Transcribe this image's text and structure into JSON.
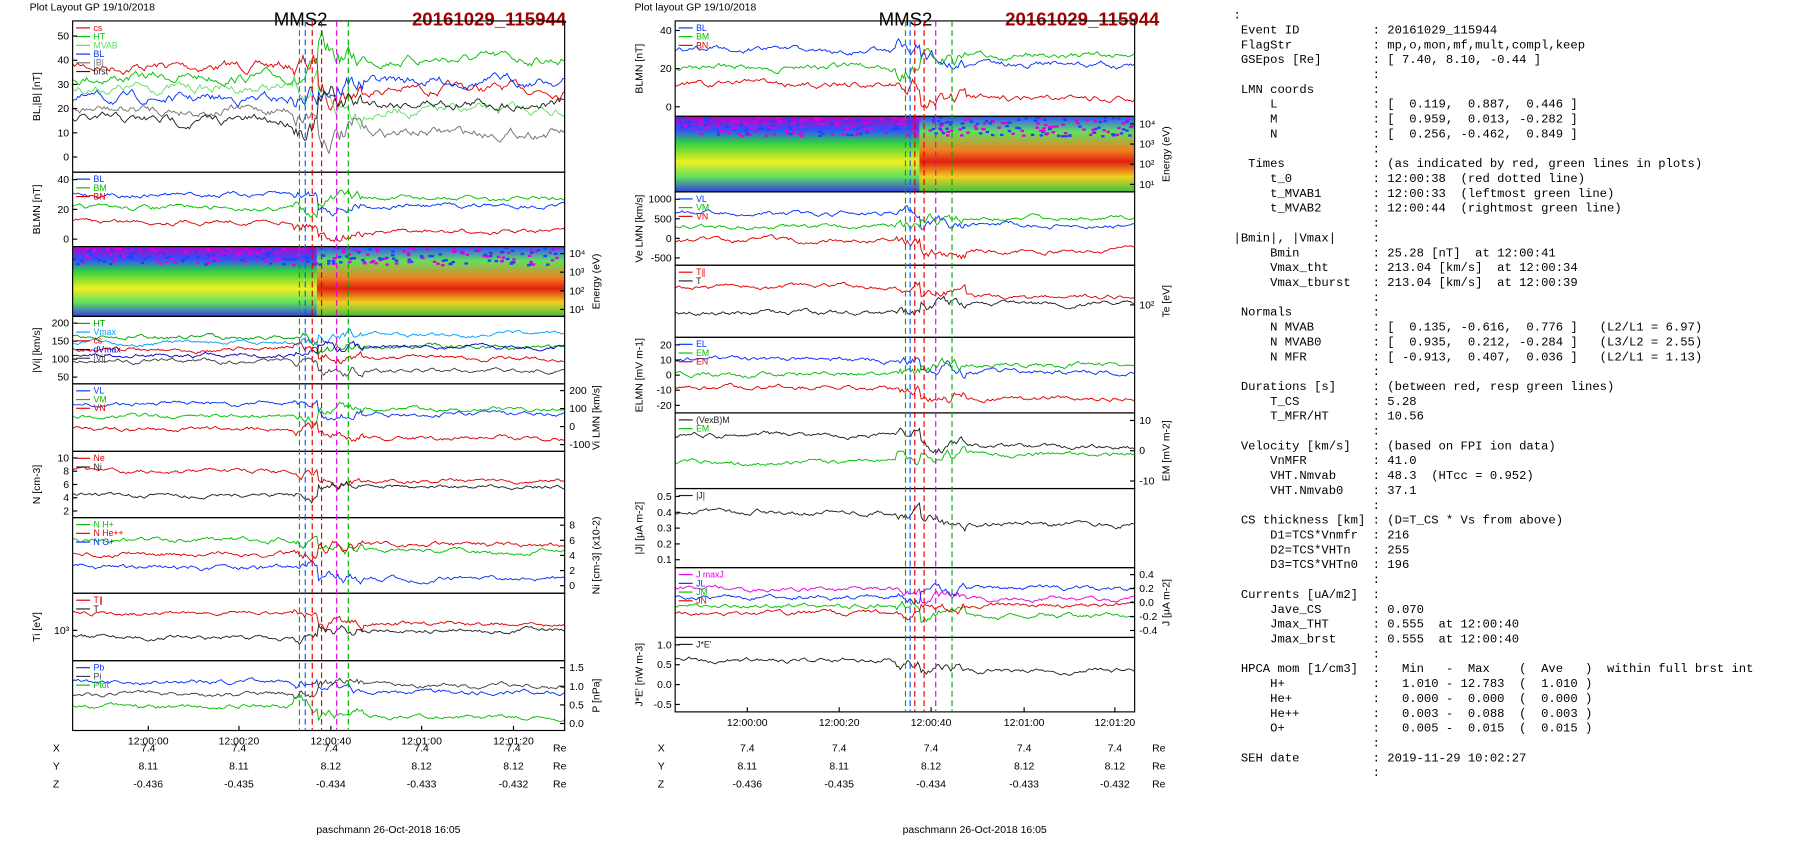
{
  "plots": [
    {
      "header": "Plot Layout GP 19/10/2018",
      "title": "MMS2",
      "event": "20161029_115944",
      "footer": "paschmann 26-Oct-2018 16:05",
      "xticks": [
        "12:00:00",
        "12:00:20",
        "12:00:40",
        "12:01:00",
        "12:01:20"
      ],
      "panels": [
        {
          "ylabel": "BL,|B| [nT]",
          "side": "left",
          "yticks": [
            "50",
            "40",
            "30",
            "20",
            "10",
            "0"
          ],
          "legend": [
            {
              "label": "cs",
              "color": "#e00000"
            },
            {
              "label": "HT",
              "color": "#00c000"
            },
            {
              "label": "MVAB",
              "color": "#60e060"
            },
            {
              "label": "BL",
              "color": "#0030ff"
            },
            {
              "label": "|B|",
              "color": "#707070"
            },
            {
              "label": "brst",
              "color": "#202020"
            }
          ]
        },
        {
          "ylabel": "BLMN [nT]",
          "side": "left",
          "yticks": [
            "40",
            "20",
            "0"
          ],
          "legend": [
            {
              "label": "BL",
              "color": "#0030ff"
            },
            {
              "label": "BM",
              "color": "#00c000"
            },
            {
              "label": "BN",
              "color": "#e00000"
            }
          ]
        },
        {
          "ylabel": "Energy (eV)",
          "side": "right",
          "kind": "spectrogram",
          "yticks": [
            "10⁴",
            "10³",
            "10²",
            "10¹"
          ],
          "legend": []
        },
        {
          "ylabel": "|Vi| [km/s]",
          "side": "left",
          "yticks": [
            "200",
            "150",
            "100",
            "50"
          ],
          "legend": [
            {
              "label": "HT",
              "color": "#00a000"
            },
            {
              "label": "Vmax",
              "color": "#00a0ff"
            },
            {
              "label": "cs",
              "color": "#e00000"
            },
            {
              "label": "dVmax",
              "color": "#0000c0"
            },
            {
              "label": "|Vi|",
              "color": "#404040"
            }
          ]
        },
        {
          "ylabel": "Vi LMN [km/s]",
          "side": "right",
          "yticks": [
            "200",
            "100",
            "0",
            "-100"
          ],
          "legend": [
            {
              "label": "VL",
              "color": "#0030ff"
            },
            {
              "label": "VM",
              "color": "#00c000"
            },
            {
              "label": "VN",
              "color": "#e00000"
            }
          ]
        },
        {
          "ylabel": "N [cm-3]",
          "side": "left",
          "yticks": [
            "10",
            "8",
            "6",
            "4",
            "2"
          ],
          "legend": [
            {
              "label": "Ne",
              "color": "#e00000"
            },
            {
              "label": "Ni",
              "color": "#202020"
            }
          ]
        },
        {
          "ylabel": "Ni [cm-3] (x10-2)",
          "side": "right",
          "yticks": [
            "8",
            "6",
            "4",
            "2",
            "0"
          ],
          "legend": [
            {
              "label": "N H+",
              "color": "#00c000"
            },
            {
              "label": "N He++",
              "color": "#e00000"
            },
            {
              "label": "N O+",
              "color": "#0030ff"
            }
          ]
        },
        {
          "ylabel": "Ti [eV]",
          "side": "left",
          "yticks": [
            "10³"
          ],
          "legend": [
            {
              "label": "T∥",
              "color": "#e00000"
            },
            {
              "label": "T",
              "color": "#202020"
            }
          ]
        },
        {
          "ylabel": "P [nPa]",
          "side": "right",
          "yticks": [
            "1.5",
            "1.0",
            "0.5",
            "0.0"
          ],
          "legend": [
            {
              "label": "Pb",
              "color": "#0030ff"
            },
            {
              "label": "Pi",
              "color": "#404040"
            },
            {
              "label": "Ptot",
              "color": "#00c000"
            }
          ]
        }
      ],
      "positions": [
        {
          "label": "X",
          "values": [
            "7.4",
            "7.4",
            "7.4",
            "7.4",
            "7.4"
          ],
          "unit": "Re"
        },
        {
          "label": "Y",
          "values": [
            "8.11",
            "8.11",
            "8.12",
            "8.12",
            "8.12"
          ],
          "unit": "Re"
        },
        {
          "label": "Z",
          "values": [
            "-0.436",
            "-0.435",
            "-0.434",
            "-0.433",
            "-0.432"
          ],
          "unit": "Re"
        }
      ]
    },
    {
      "header": "Plot layout GP 19/10/2018",
      "title": "MMS2",
      "event": "20161029_115944",
      "footer": "paschmann 26-Oct-2018 16:05",
      "xticks": [
        "12:00:00",
        "12:00:20",
        "12:00:40",
        "12:01:00",
        "12:01:20"
      ],
      "panels": [
        {
          "ylabel": "BLMN [nT]",
          "side": "left",
          "yticks": [
            "40",
            "20",
            "0"
          ],
          "legend": [
            {
              "label": "BL",
              "color": "#0030ff"
            },
            {
              "label": "BM",
              "color": "#00c000"
            },
            {
              "label": "BN",
              "color": "#e00000"
            }
          ]
        },
        {
          "ylabel": "Energy (eV)",
          "side": "right",
          "kind": "spectrogram",
          "yticks": [
            "10⁴",
            "10³",
            "10²",
            "10¹"
          ],
          "legend": []
        },
        {
          "ylabel": "Ve LMN [km/s]",
          "side": "left",
          "yticks": [
            "1000",
            "500",
            "0",
            "-500"
          ],
          "legend": [
            {
              "label": "VL",
              "color": "#0030ff"
            },
            {
              "label": "VM",
              "color": "#00c000"
            },
            {
              "label": "VN",
              "color": "#e00000"
            }
          ]
        },
        {
          "ylabel": "Te [eV]",
          "side": "right",
          "yticks": [
            "10²"
          ],
          "legend": [
            {
              "label": "T∥",
              "color": "#e00000"
            },
            {
              "label": "T",
              "color": "#202020"
            }
          ]
        },
        {
          "ylabel": "ELMN [mV m-1]",
          "side": "left",
          "yticks": [
            "20",
            "10",
            "0",
            "-10",
            "-20"
          ],
          "legend": [
            {
              "label": "EL",
              "color": "#0030ff"
            },
            {
              "label": "EM",
              "color": "#00c000"
            },
            {
              "label": "EN",
              "color": "#e00000"
            }
          ]
        },
        {
          "ylabel": "EM [mV m-2]",
          "side": "right",
          "yticks": [
            "10",
            "0",
            "-10"
          ],
          "legend": [
            {
              "label": "(VexB)M",
              "color": "#202020"
            },
            {
              "label": "EM",
              "color": "#00c000"
            }
          ]
        },
        {
          "ylabel": "|J| [μA m-2]",
          "side": "left",
          "yticks": [
            "0.5",
            "0.4",
            "0.3",
            "0.2",
            "0.1"
          ],
          "legend": [
            {
              "label": "|J|",
              "color": "#202020"
            }
          ]
        },
        {
          "ylabel": "J [μA m-2]",
          "side": "right",
          "yticks": [
            "0.4",
            "0.2",
            "0.0",
            "-0.2",
            "-0.4"
          ],
          "legend": [
            {
              "label": "J maxJ",
              "color": "#e000e0"
            },
            {
              "label": "JL",
              "color": "#0030ff"
            },
            {
              "label": "JM",
              "color": "#00c000"
            },
            {
              "label": "JN",
              "color": "#e00000"
            }
          ]
        },
        {
          "ylabel": "J*E' [nW m-3]",
          "side": "left",
          "yticks": [
            "1.0",
            "0.5",
            "0.0",
            "-0.5"
          ],
          "legend": [
            {
              "label": "J*E'",
              "color": "#202020"
            }
          ]
        }
      ],
      "positions": [
        {
          "label": "X",
          "values": [
            "7.4",
            "7.4",
            "7.4",
            "7.4",
            "7.4"
          ],
          "unit": "Re"
        },
        {
          "label": "Y",
          "values": [
            "8.11",
            "8.11",
            "8.12",
            "8.12",
            "8.12"
          ],
          "unit": "Re"
        },
        {
          "label": "Z",
          "values": [
            "-0.436",
            "-0.435",
            "-0.434",
            "-0.433",
            "-0.432"
          ],
          "unit": "Re"
        }
      ]
    }
  ],
  "info": {
    "lines": [
      ":",
      " Event ID          : 20161029_115944",
      " FlagStr           : mp,o,mon,mf,mult,compl,keep",
      " GSEpos [Re]       : [ 7.40, 8.10, -0.44 ]",
      "                   :",
      " LMN coords        :",
      "     L             : [  0.119,  0.887,  0.446 ]",
      "     M             : [  0.959,  0.013, -0.282 ]",
      "     N             : [  0.256, -0.462,  0.849 ]",
      "                   :",
      "  Times            : (as indicated by red, green lines in plots)",
      "     t_0           : 12:00:38  (red dotted line)",
      "     t_MVAB1       : 12:00:33  (leftmost green line)",
      "     t_MVAB2       : 12:00:44  (rightmost green line)",
      "                   :",
      "|Bmin|, |Vmax|     :",
      "     Bmin          : 25.28 [nT]  at 12:00:41",
      "     Vmax_tht      : 213.04 [km/s]  at 12:00:34",
      "     Vmax_tburst   : 213.04 [km/s]  at 12:00:39",
      "                   :",
      " Normals           :",
      "     N MVAB        : [  0.135, -0.616,  0.776 ]   (L2/L1 = 6.97)",
      "     N MVAB0       : [  0.935,  0.212, -0.284 ]   (L3/L2 = 2.55)",
      "     N MFR         : [ -0.913,  0.407,  0.036 ]   (L2/L1 = 1.13)",
      "                   :",
      " Durations [s]     : (between red, resp green lines)",
      "     T_CS          : 5.28",
      "     T_MFR/HT      : 10.56",
      "                   :",
      " Velocity [km/s]   : (based on FPI ion data)",
      "     VnMFR         : 41.0",
      "     VHT.Nmvab     : 48.3  (HTcc = 0.952)",
      "     VHT.Nmvab0    : 37.1",
      "                   :",
      " CS thickness [km] : (D=T_CS * Vs from above)",
      "     D1=TCS*Vnmfr  : 216",
      "     D2=TCS*VHTn   : 255",
      "     D3=TCS*VHTn0  : 196",
      "                   :",
      " Currents [uA/m2]  :",
      "     Jave_CS       : 0.070",
      "     Jmax_THT      : 0.555  at 12:00:40",
      "     Jmax_brst     : 0.555  at 12:00:40",
      "                   :",
      " HPCA mom [1/cm3]  :   Min   -  Max    (  Ave   )  within full brst int",
      "     H+            :   1.010 - 12.783  (  1.010 )",
      "     He+           :   0.000 -  0.000  (  0.000 )",
      "     He++          :   0.003 -  0.088  (  0.003 )",
      "     O+            :   0.005 -  0.015  (  0.015 )",
      "                   :",
      " SEH date          : 2019-11-29 10:02:27",
      "                   :"
    ]
  }
}
